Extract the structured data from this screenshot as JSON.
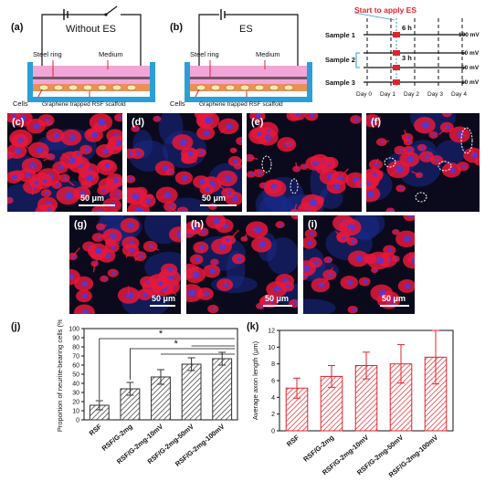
{
  "panel_a": {
    "label": "(a)",
    "title": "Without ES",
    "steel": "Steel ring",
    "medium": "Medium",
    "cells": "Cells",
    "scaffold": "Graphene trapped RSF scaffold"
  },
  "panel_b": {
    "label": "(b)",
    "title": "ES",
    "steel": "Steel ring",
    "medium": "Medium",
    "cells": "Cells",
    "scaffold": "Graphene trapped RSF scaffold"
  },
  "timeline": {
    "header": "Start to apply ES",
    "samples": [
      "Sample 1",
      "Sample 2",
      "Sample 3"
    ],
    "durations": [
      "6 h",
      "3 h"
    ],
    "voltages": [
      "100 mV",
      "50 mV",
      "50 mV",
      "10 mV"
    ],
    "days": [
      "Day 0",
      "Day 1",
      "Day 2",
      "Day 3",
      "Day 4"
    ]
  },
  "micrographs": [
    {
      "label": "(c)",
      "scale": "50 μm"
    },
    {
      "label": "(d)",
      "scale": "50 μm"
    },
    {
      "label": "(e)",
      "scale": ""
    },
    {
      "label": "(f)",
      "scale": ""
    },
    {
      "label": "(g)",
      "scale": "50 μm"
    },
    {
      "label": "(h)",
      "scale": "50 μm"
    },
    {
      "label": "(i)",
      "scale": "50 μm"
    }
  ],
  "chart_data": [
    {
      "type": "bar",
      "panel": "(j)",
      "categories": [
        "RSF",
        "RSF/G-2mg",
        "RSF/G-2mg-10mV",
        "RSF/G-2mg-50mV",
        "RSF/G-2mg-100mV"
      ],
      "values": [
        16,
        34,
        47,
        61,
        67
      ],
      "errors": [
        5,
        7,
        8,
        7,
        7
      ],
      "ylabel": "Proportion of neurite-bearing cells (%)",
      "ylim": [
        0,
        100
      ],
      "yticks": [
        0,
        10,
        20,
        30,
        40,
        50,
        60,
        70,
        80,
        90,
        100
      ],
      "significance": [
        "*",
        "*"
      ],
      "pattern": "hatched",
      "color": "#333333"
    },
    {
      "type": "bar",
      "panel": "(k)",
      "categories": [
        "RSF",
        "RSF/G-2mg",
        "RSF/G-2mg-10mV",
        "RSF/G-2mg-50mV",
        "RSF/G-2mg-100mV"
      ],
      "values": [
        5.1,
        6.5,
        7.8,
        8.0,
        8.8
      ],
      "errors": [
        1.2,
        1.3,
        1.6,
        2.3,
        3.2
      ],
      "ylabel": "Average axon length (μm)",
      "ylim": [
        0,
        12
      ],
      "yticks": [
        0,
        2,
        4,
        6,
        8,
        10,
        12
      ],
      "pattern": "hatched",
      "color": "#e0242b"
    }
  ]
}
